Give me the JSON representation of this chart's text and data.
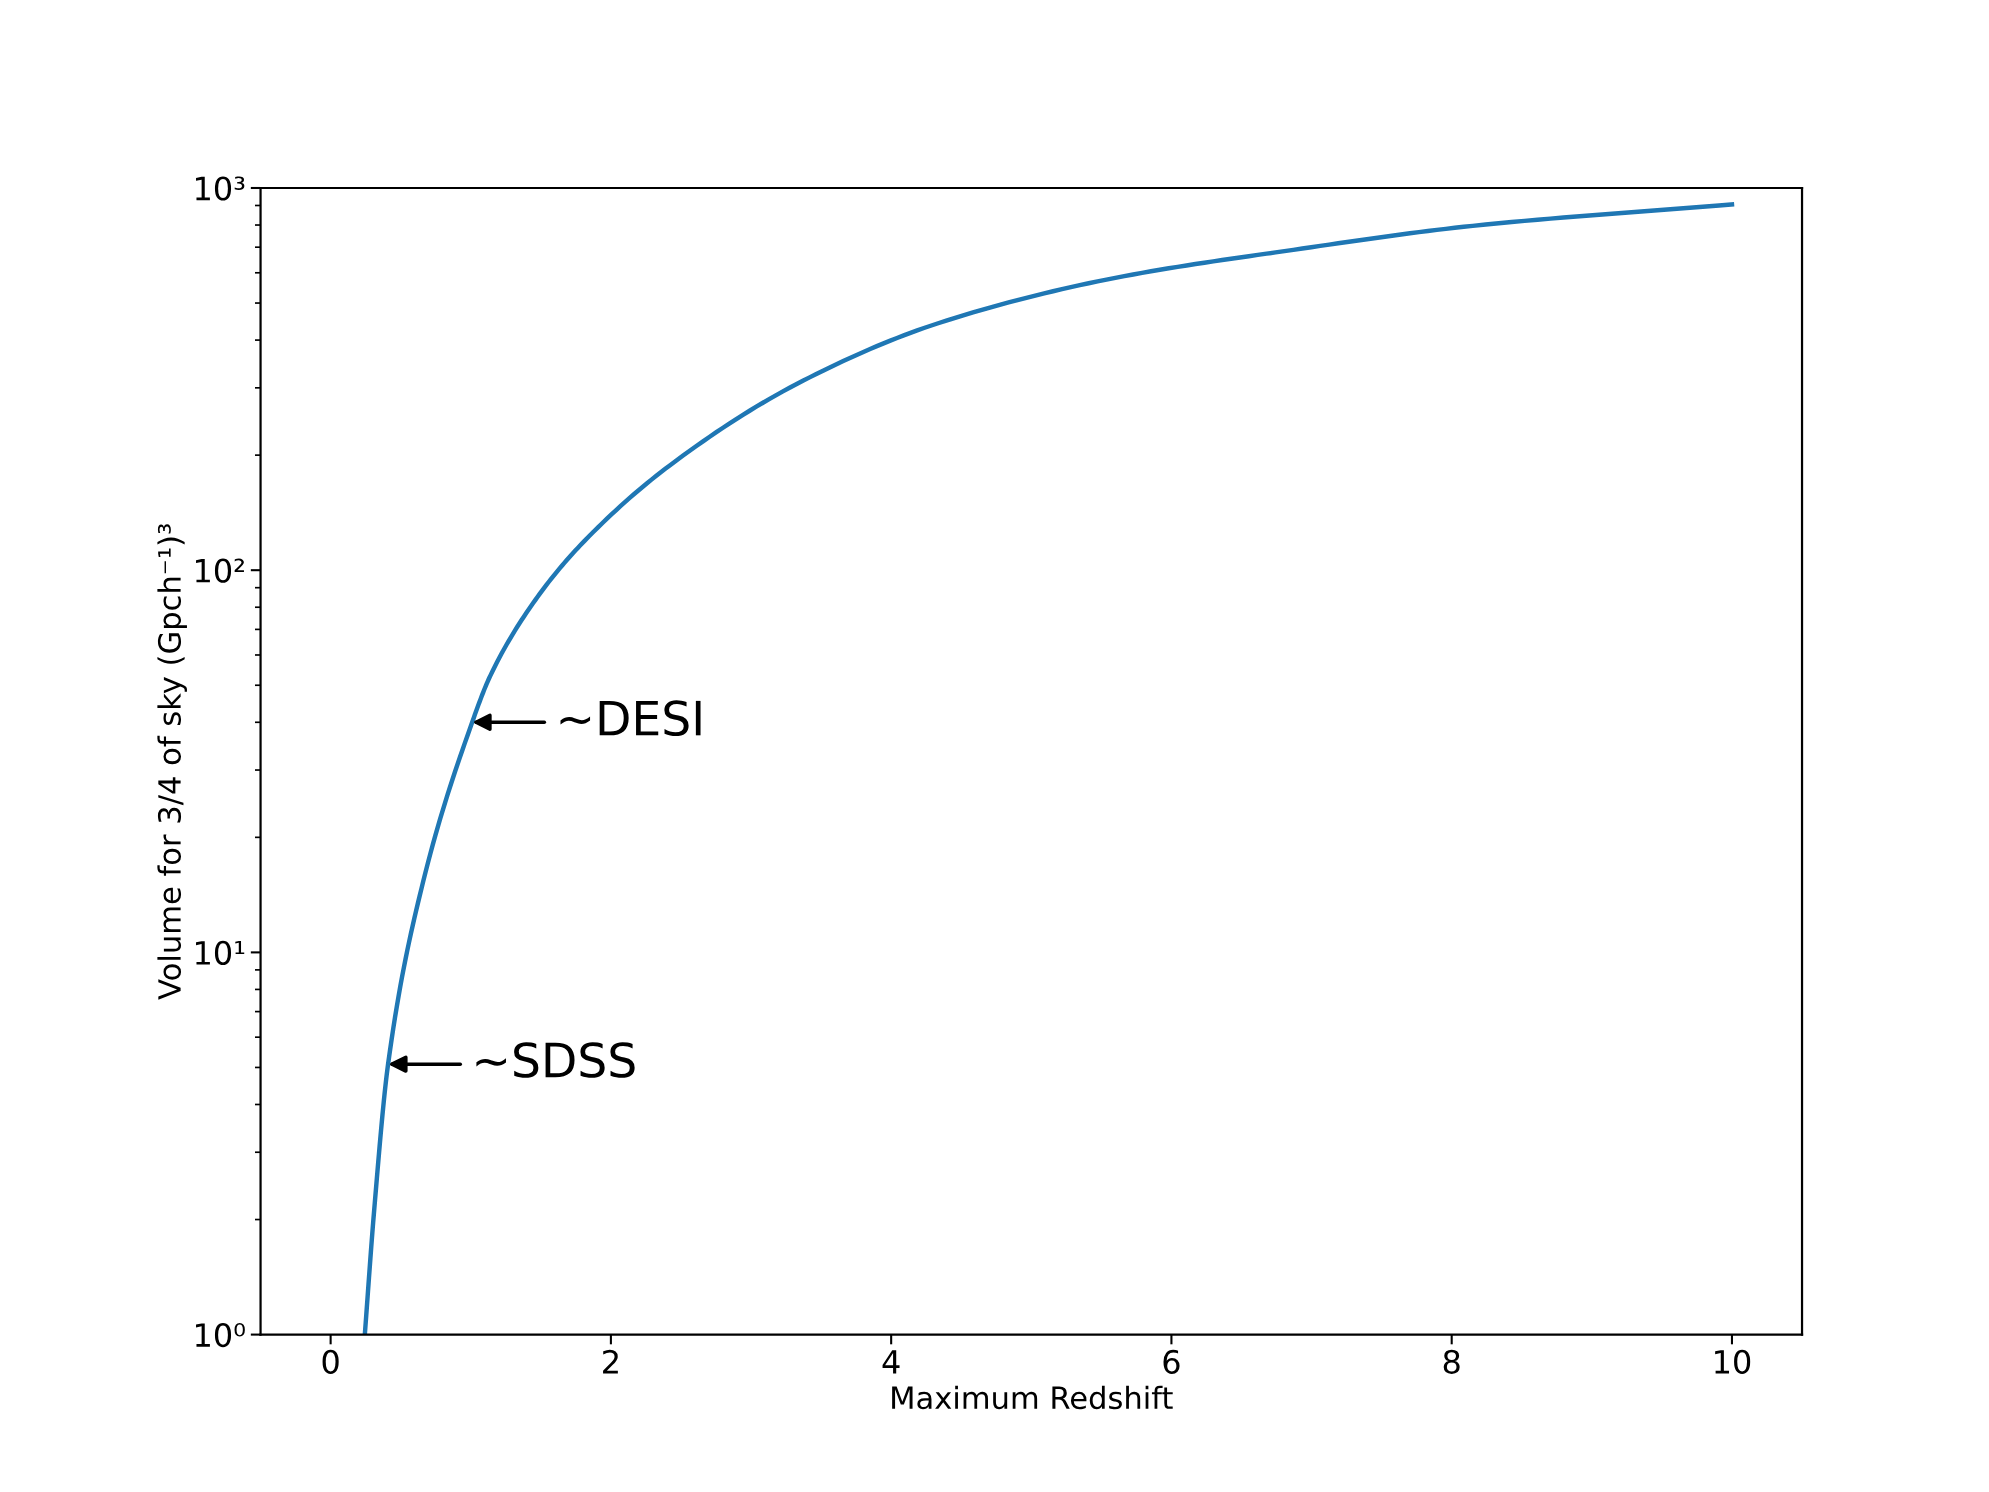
{
  "chart_data": {
    "type": "line",
    "xlabel": "Maximum Redshift",
    "ylabel": "Volume for 3/4 of sky (Gpch⁻¹)³",
    "log": "y",
    "xlim": [
      -0.5,
      10.5
    ],
    "ylim": [
      1,
      1000
    ],
    "xticks": [
      0,
      2,
      4,
      6,
      8,
      10
    ],
    "yticks": [
      {
        "value": 1,
        "label": "10⁰"
      },
      {
        "value": 10,
        "label": "10¹"
      },
      {
        "value": 100,
        "label": "10²"
      },
      {
        "value": 1000,
        "label": "10³"
      }
    ],
    "grid": false,
    "legend": false,
    "series": [
      {
        "color": "#1f77b4",
        "x": [
          0.244,
          0.31,
          0.41,
          0.66,
          1.01,
          1.14,
          1.46,
          1.78,
          2.42,
          3.37,
          4.33,
          5.6,
          6.87,
          8.15,
          10
        ],
        "values": [
          1,
          2.1,
          5.1,
          15.3,
          40,
          53,
          83.5,
          116,
          188,
          313,
          442,
          582,
          689,
          796,
          906
        ]
      }
    ],
    "annotations": [
      {
        "text": "~DESI",
        "x": 1.01,
        "y": 40
      },
      {
        "text": "~SDSS",
        "x": 0.41,
        "y": 5.1
      }
    ]
  }
}
